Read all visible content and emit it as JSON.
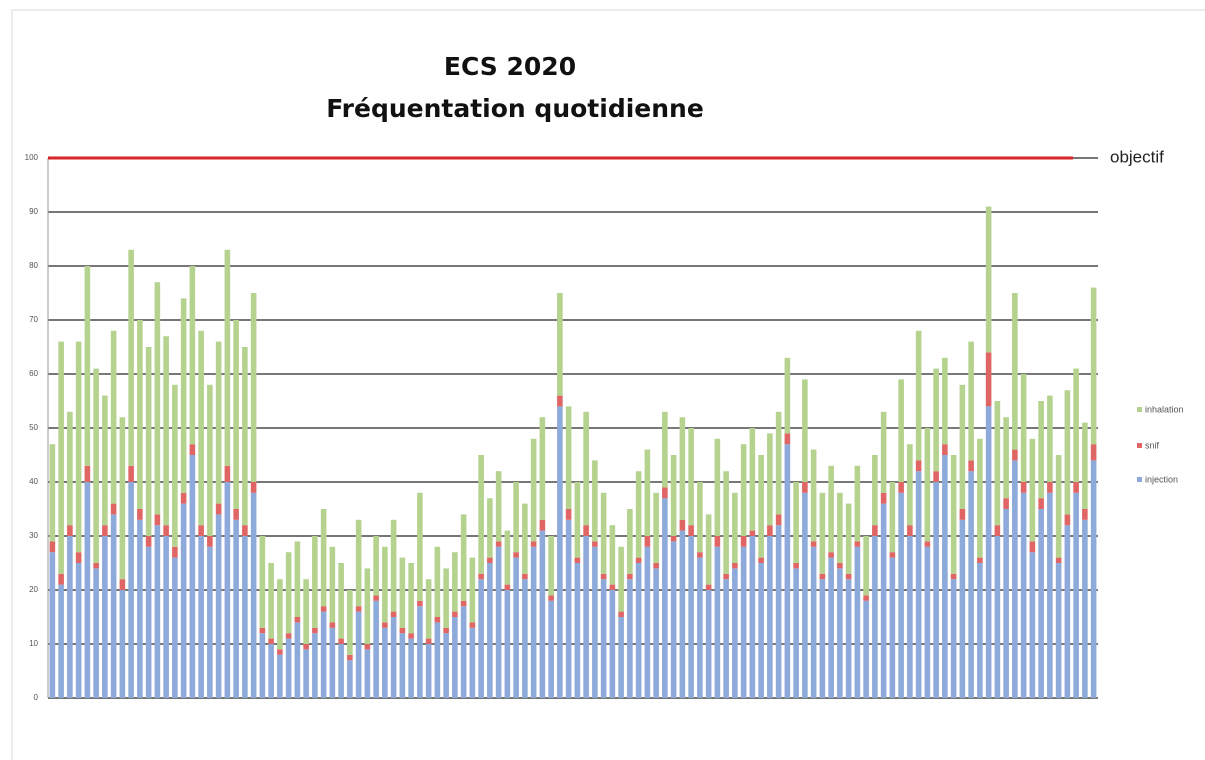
{
  "chart_data": {
    "type": "stacked_bar",
    "title": "ECS 2020",
    "subtitle": "Fréquentation quotidienne",
    "ylim": [
      0,
      100
    ],
    "yticks": [
      0,
      10,
      20,
      30,
      40,
      50,
      60,
      70,
      80,
      90,
      100
    ],
    "grid": true,
    "legend": "right",
    "target": {
      "value": 100,
      "label": "objectif",
      "color": "#d9262b"
    },
    "categories": [
      null,
      null,
      null,
      null,
      null,
      null,
      null,
      null,
      null,
      null,
      null,
      null,
      null,
      null,
      null,
      null,
      null,
      null,
      null,
      null,
      null,
      null,
      null,
      null,
      null,
      null,
      null,
      null,
      null,
      null,
      null,
      null,
      null,
      null,
      null,
      null,
      null,
      null,
      null,
      null,
      null,
      null,
      null,
      null,
      null,
      null,
      null,
      null,
      null,
      null,
      null,
      null,
      null,
      null,
      null,
      null,
      null,
      null,
      null,
      null,
      null,
      null,
      null,
      null,
      null,
      null,
      null,
      null,
      null,
      null,
      null,
      null,
      null,
      null,
      null,
      null,
      null,
      null,
      null,
      null,
      null,
      null,
      null,
      null,
      null,
      null,
      null,
      null,
      null,
      null,
      null,
      null,
      null,
      null,
      null,
      null,
      null,
      null,
      null,
      null,
      null,
      null,
      null,
      null,
      null,
      null,
      null,
      null,
      null,
      null,
      null,
      null,
      null,
      null,
      null,
      null,
      null,
      null,
      null,
      null
    ],
    "series": [
      {
        "name": "injection",
        "color": "#8eaadb",
        "values": [
          27,
          21,
          30,
          25,
          40,
          24,
          30,
          34,
          20,
          40,
          33,
          28,
          32,
          30,
          26,
          36,
          45,
          30,
          28,
          34,
          40,
          33,
          30,
          38,
          12,
          10,
          8,
          11,
          14,
          9,
          12,
          16,
          13,
          10,
          7,
          16,
          9,
          18,
          13,
          15,
          12,
          11,
          17,
          10,
          14,
          12,
          15,
          17,
          13,
          22,
          25,
          28,
          20,
          26,
          22,
          28,
          31,
          18,
          54,
          33,
          25,
          30,
          28,
          22,
          20,
          15,
          22,
          25,
          28,
          24,
          37,
          29,
          31,
          30,
          26,
          20,
          28,
          22,
          24,
          28,
          30,
          25,
          30,
          32,
          47,
          24,
          38,
          28,
          22,
          26,
          24,
          22,
          28,
          18,
          30,
          36,
          26,
          38,
          30,
          42,
          28,
          40,
          45,
          22,
          33,
          42,
          25,
          54,
          30,
          35,
          44,
          38,
          27,
          35,
          38,
          25,
          32,
          38,
          33,
          44
        ]
      },
      {
        "name": "snif",
        "color": "#e06666",
        "values": [
          2,
          2,
          2,
          2,
          3,
          1,
          2,
          2,
          2,
          3,
          2,
          2,
          2,
          2,
          2,
          2,
          2,
          2,
          2,
          2,
          3,
          2,
          2,
          2,
          1,
          1,
          1,
          1,
          1,
          1,
          1,
          1,
          1,
          1,
          1,
          1,
          1,
          1,
          1,
          1,
          1,
          1,
          1,
          1,
          1,
          1,
          1,
          1,
          1,
          1,
          1,
          1,
          1,
          1,
          1,
          1,
          2,
          1,
          2,
          2,
          1,
          2,
          1,
          1,
          1,
          1,
          1,
          1,
          2,
          1,
          2,
          1,
          2,
          2,
          1,
          1,
          2,
          1,
          1,
          2,
          1,
          1,
          2,
          2,
          2,
          1,
          2,
          1,
          1,
          1,
          1,
          1,
          1,
          1,
          2,
          2,
          1,
          2,
          2,
          2,
          1,
          2,
          2,
          1,
          2,
          2,
          1,
          10,
          2,
          2,
          2,
          2,
          2,
          2,
          2,
          1,
          2,
          2,
          2,
          3
        ]
      },
      {
        "name": "inhalation",
        "color": "#b5d38f",
        "values": [
          18,
          43,
          21,
          39,
          37,
          36,
          24,
          32,
          30,
          40,
          35,
          35,
          43,
          35,
          30,
          36,
          33,
          36,
          28,
          30,
          40,
          35,
          33,
          35,
          17,
          14,
          13,
          15,
          14,
          12,
          17,
          18,
          14,
          14,
          12,
          16,
          14,
          11,
          14,
          17,
          13,
          13,
          20,
          11,
          13,
          11,
          11,
          16,
          12,
          22,
          11,
          13,
          10,
          13,
          13,
          19,
          19,
          11,
          19,
          19,
          14,
          21,
          15,
          15,
          11,
          12,
          12,
          16,
          16,
          13,
          14,
          15,
          19,
          18,
          13,
          13,
          18,
          19,
          13,
          17,
          19,
          19,
          17,
          19,
          14,
          15,
          19,
          17,
          15,
          16,
          13,
          13,
          14,
          11,
          13,
          15,
          13,
          19,
          15,
          24,
          21,
          19,
          16,
          22,
          23,
          22,
          22,
          27,
          23,
          15,
          29,
          20,
          19,
          18,
          16,
          19,
          23,
          21,
          16,
          29
        ]
      }
    ]
  }
}
